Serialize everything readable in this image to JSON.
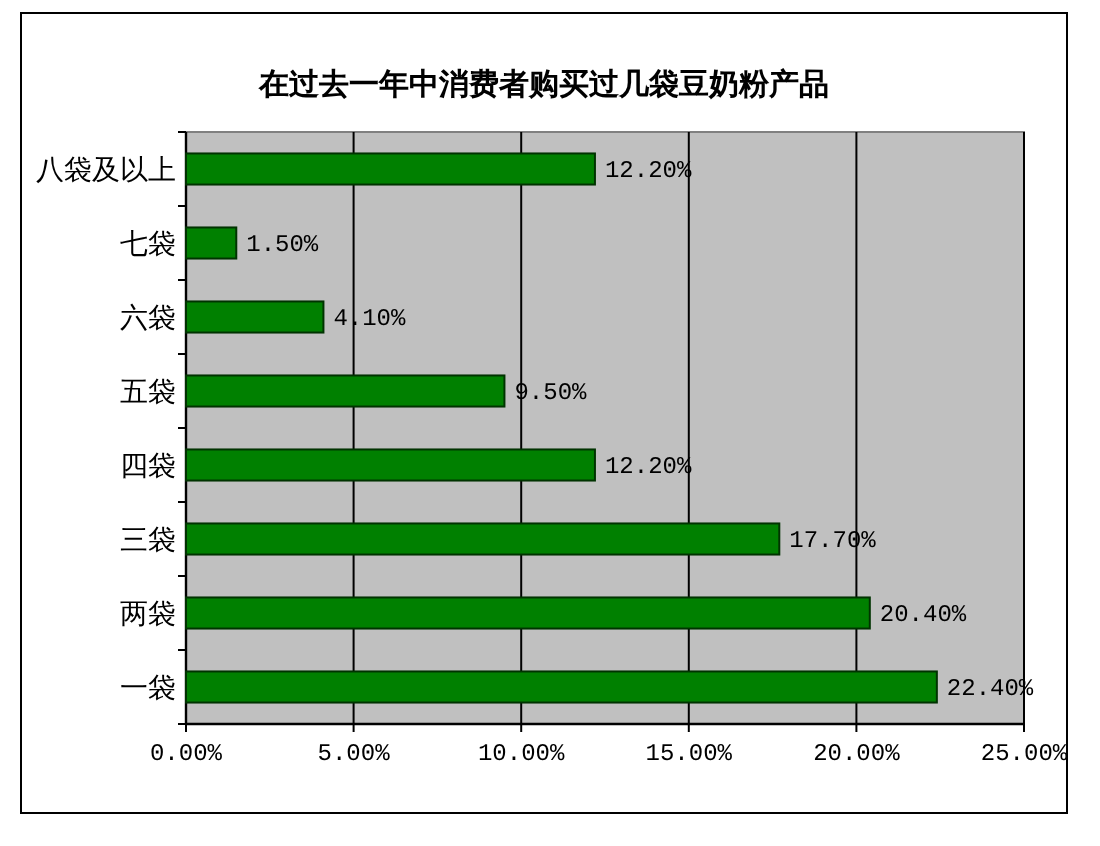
{
  "chart_data": {
    "type": "bar",
    "orientation": "horizontal",
    "title": "在过去一年中消费者购买过几袋豆奶粉产品",
    "categories": [
      "八袋及以上",
      "七袋",
      "六袋",
      "五袋",
      "四袋",
      "三袋",
      "两袋",
      "一袋"
    ],
    "values": [
      12.2,
      1.5,
      4.1,
      9.5,
      12.2,
      17.7,
      20.4,
      22.4
    ],
    "value_labels": [
      "12.20%",
      "1.50%",
      "4.10%",
      "9.50%",
      "12.20%",
      "17.70%",
      "20.40%",
      "22.40%"
    ],
    "color": "#008000",
    "xlim": [
      0,
      25
    ],
    "xticks": [
      {
        "value": 0,
        "label": "0.00%"
      },
      {
        "value": 5,
        "label": "5.00%"
      },
      {
        "value": 10,
        "label": "10.00%"
      },
      {
        "value": 15,
        "label": "15.00%"
      },
      {
        "value": 20,
        "label": "20.00%"
      },
      {
        "value": 25,
        "label": "25.00%"
      }
    ],
    "grid": "x"
  }
}
